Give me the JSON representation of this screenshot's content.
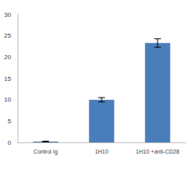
{
  "chart_data": {
    "type": "bar",
    "categories": [
      "Control Ig",
      "1H10",
      "1H10 +anti-CD28"
    ],
    "values": [
      0.2,
      10.0,
      23.3
    ],
    "errors": [
      0.1,
      0.5,
      1.0
    ],
    "color": "#4a7ebb",
    "ylim": [
      0,
      30
    ],
    "yticks": [
      0,
      5,
      10,
      15,
      20,
      25,
      30
    ],
    "grid": false
  }
}
